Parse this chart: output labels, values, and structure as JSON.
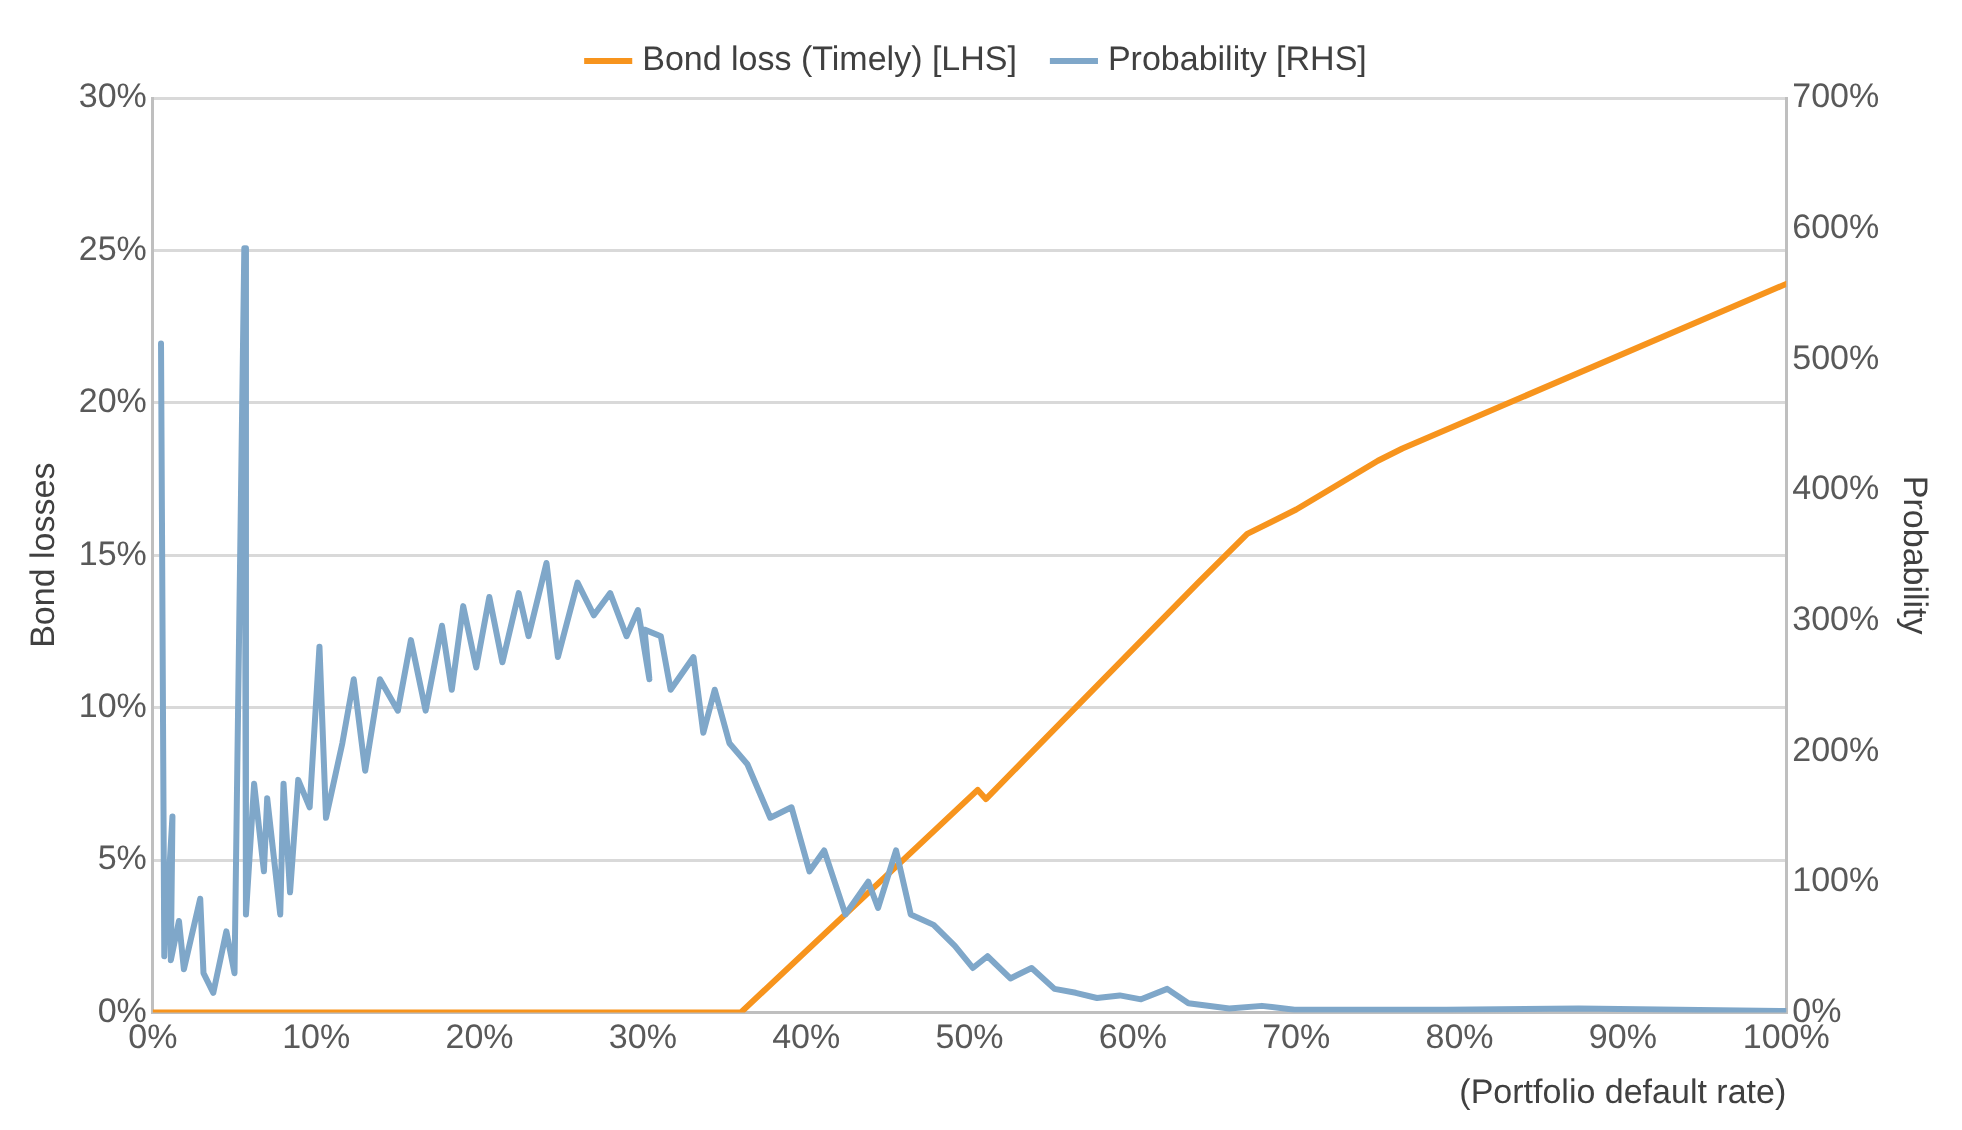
{
  "chart_data": {
    "type": "line",
    "xlabel": "(Portfolio default rate)",
    "ylabel": "Bond losses",
    "y2label": "Probability",
    "legend": "top",
    "grid": "y",
    "marker": "none",
    "line_style": "solid",
    "xlim": [
      0,
      100
    ],
    "xticks": [
      {
        "value": 0,
        "label": "0%"
      },
      {
        "value": 10,
        "label": "10%"
      },
      {
        "value": 20,
        "label": "20%"
      },
      {
        "value": 30,
        "label": "30%"
      },
      {
        "value": 40,
        "label": "40%"
      },
      {
        "value": 50,
        "label": "50%"
      },
      {
        "value": 60,
        "label": "60%"
      },
      {
        "value": 70,
        "label": "70%"
      },
      {
        "value": 80,
        "label": "80%"
      },
      {
        "value": 90,
        "label": "90%"
      },
      {
        "value": 100,
        "label": "100%"
      }
    ],
    "ylim": [
      0,
      30
    ],
    "yticks": [
      {
        "value": 0,
        "label": "0%"
      },
      {
        "value": 5,
        "label": "5%"
      },
      {
        "value": 10,
        "label": "10%"
      },
      {
        "value": 15,
        "label": "15%"
      },
      {
        "value": 20,
        "label": "20%"
      },
      {
        "value": 25,
        "label": "25%"
      },
      {
        "value": 30,
        "label": "30%"
      }
    ],
    "y2lim": [
      0,
      700
    ],
    "y2ticks": [
      {
        "value": 0,
        "label": "0%"
      },
      {
        "value": 100,
        "label": "100%"
      },
      {
        "value": 200,
        "label": "200%"
      },
      {
        "value": 300,
        "label": "300%"
      },
      {
        "value": 400,
        "label": "400%"
      },
      {
        "value": 500,
        "label": "500%"
      },
      {
        "value": 600,
        "label": "600%"
      },
      {
        "value": 700,
        "label": "700%"
      }
    ],
    "series": [
      {
        "name": "Bond loss (Timely) [LHS]",
        "color": "#f7941d",
        "x": [
          0,
          36,
          50.5,
          51,
          64,
          67,
          70,
          75,
          76.5,
          100
        ],
        "values": [
          0,
          0,
          7.3,
          7.0,
          14.1,
          15.7,
          16.5,
          18.1,
          18.5,
          23.9
        ]
      },
      {
        "name": "Probability [RHS]",
        "color": "#7fa7c9",
        "axis": "y2",
        "x": [
          0.5,
          0.7,
          1.2,
          1.1,
          1.6,
          1.9,
          2.9,
          3.1,
          3.7,
          4.5,
          5.0,
          5.6,
          5.7,
          6.2,
          6.8,
          7.0,
          7.8,
          8.0,
          8.4,
          8.9,
          9.6,
          10.2,
          10.6,
          11.6,
          12.3,
          13.0,
          13.9,
          15.0,
          15.8,
          16.7,
          17.7,
          18.3,
          19.0,
          19.8,
          20.6,
          21.4,
          22.4,
          23.0,
          24.1,
          24.8,
          26.0,
          27.0,
          28.0,
          29.0,
          29.7,
          30.4,
          30.1,
          31.1,
          31.7,
          33.1,
          33.7,
          34.4,
          35.3,
          36.4,
          37.8,
          39.1,
          40.2,
          41.1,
          42.4,
          43.8,
          44.4,
          45.5,
          46.4,
          47.8,
          49.1,
          50.2,
          51.1,
          52.5,
          53.8,
          55.2,
          56.5,
          57.8,
          59.2,
          60.5,
          62.1,
          63.4,
          65.9,
          67.9,
          69.9,
          79.2,
          87.3,
          100
        ],
        "values": [
          512,
          43,
          150,
          40,
          70,
          33,
          87,
          30,
          15,
          62,
          30,
          585,
          75,
          175,
          108,
          164,
          75,
          175,
          92,
          178,
          157,
          280,
          149,
          206,
          255,
          185,
          255,
          231,
          285,
          231,
          296,
          247,
          311,
          264,
          318,
          268,
          321,
          288,
          344,
          272,
          329,
          304,
          321,
          288,
          308,
          255,
          293,
          288,
          247,
          272,
          214,
          247,
          206,
          190,
          149,
          157,
          108,
          124,
          75,
          100,
          80,
          124,
          75,
          67,
          51,
          34,
          43,
          26,
          34,
          18,
          15,
          11,
          13,
          10,
          18,
          7,
          3,
          5,
          2,
          2,
          3,
          1
        ]
      }
    ]
  }
}
